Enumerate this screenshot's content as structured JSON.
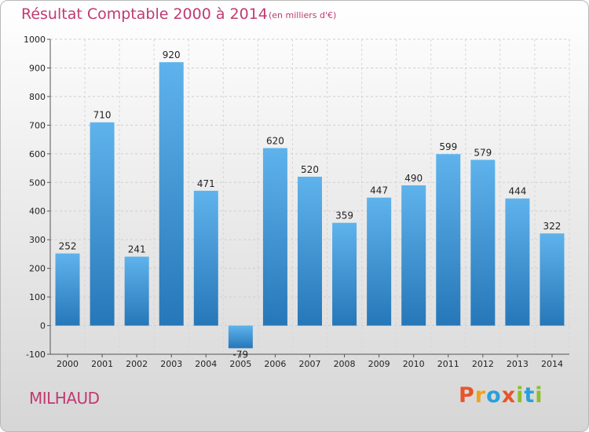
{
  "header": {
    "title": "Résultat Comptable 2000 à 2014",
    "subtitle": "(en milliers d'€)"
  },
  "footer": {
    "city": "MILHAUD",
    "brand": {
      "letters": [
        "P",
        "r",
        "o",
        "x",
        "i",
        "t",
        "i"
      ],
      "colors": [
        "#e8542a",
        "#f1a21c",
        "#2aa0d8",
        "#e8542a",
        "#8cbf2a",
        "#2aa0d8",
        "#8cbf2a"
      ]
    }
  },
  "chart_data": {
    "type": "bar",
    "categories": [
      "2000",
      "2001",
      "2002",
      "2003",
      "2004",
      "2005",
      "2006",
      "2007",
      "2008",
      "2009",
      "2010",
      "2011",
      "2012",
      "2013",
      "2014"
    ],
    "values": [
      252,
      710,
      241,
      920,
      471,
      -79,
      620,
      520,
      359,
      447,
      490,
      599,
      579,
      444,
      322
    ],
    "ylim": [
      -100,
      1000
    ],
    "yticks": [
      -100,
      0,
      100,
      200,
      300,
      400,
      500,
      600,
      700,
      800,
      900,
      1000
    ],
    "grid": true,
    "bar_color": "#4a9fd8"
  }
}
